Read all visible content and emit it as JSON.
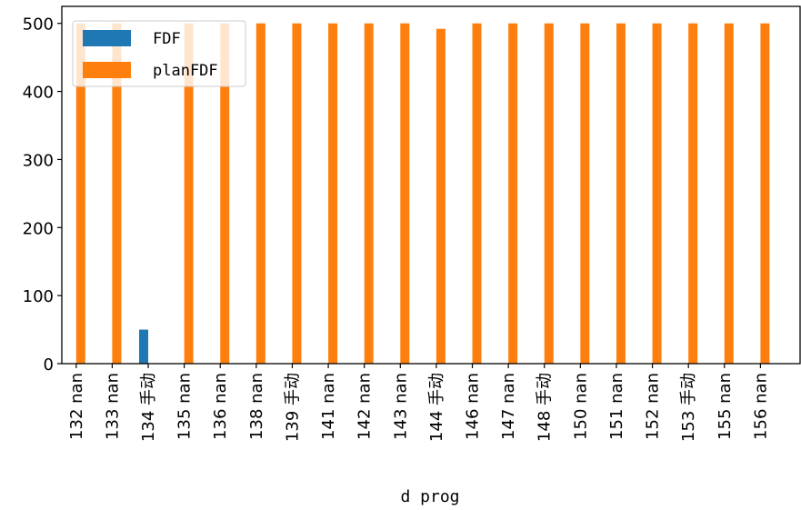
{
  "chart_data": {
    "type": "bar",
    "xlabel": "d prog",
    "ylabel": "",
    "ylim": [
      0,
      525
    ],
    "yticks": [
      0,
      100,
      200,
      300,
      400,
      500
    ],
    "grid": false,
    "legend_position": "top-left",
    "categories": [
      "132 nan",
      "133 nan",
      "134 手动",
      "135 nan",
      "136 nan",
      "138 nan",
      "139 手动",
      "141 nan",
      "142 nan",
      "143 nan",
      "144 手动",
      "146 nan",
      "147 nan",
      "148 手动",
      "150 nan",
      "151 nan",
      "152 nan",
      "153 手动",
      "155 nan",
      "156 nan"
    ],
    "series": [
      {
        "name": "FDF",
        "color": "#1f77b4",
        "values": [
          0,
          0,
          50,
          0,
          0,
          0,
          0,
          0,
          0,
          0,
          0,
          0,
          0,
          0,
          0,
          0,
          0,
          0,
          0,
          0
        ]
      },
      {
        "name": "planFDF",
        "color": "#ff7f0e",
        "values": [
          500,
          500,
          0,
          500,
          500,
          500,
          500,
          500,
          500,
          500,
          492,
          500,
          500,
          500,
          500,
          500,
          500,
          500,
          500,
          500
        ]
      }
    ]
  }
}
